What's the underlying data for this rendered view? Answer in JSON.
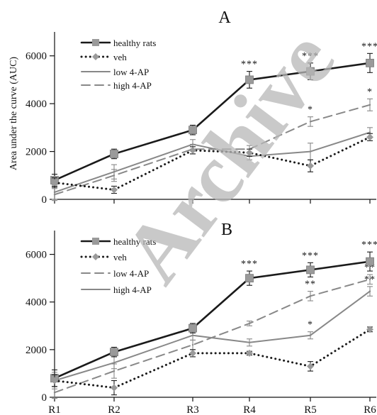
{
  "watermark": "Archive",
  "x_tick_labels": [
    "R1",
    "R2",
    "R3",
    "R4",
    "R5",
    "R6"
  ],
  "chart_data": [
    {
      "type": "line",
      "title": "A",
      "xlabel": "",
      "ylabel": "Area under the curve (AUC)",
      "categories": [
        "R1",
        "R2",
        "R3",
        "R4",
        "R5",
        "R6"
      ],
      "ylim": [
        0,
        7000
      ],
      "yticks": [
        0,
        2000,
        4000,
        6000
      ],
      "grid": false,
      "legend_position": "top-left",
      "series": [
        {
          "name": "healthy rats",
          "values": [
            800,
            1900,
            2900,
            5000,
            5350,
            5700
          ],
          "errors": [
            250,
            200,
            200,
            350,
            350,
            400
          ],
          "color": "#1a1a1a",
          "dash": "solid",
          "width": 2.6,
          "marker": "square",
          "significance": [
            "",
            "",
            "",
            "***",
            "***",
            "***"
          ]
        },
        {
          "name": "veh",
          "values": [
            700,
            400,
            2050,
            1950,
            1400,
            2600
          ],
          "errors": [
            200,
            150,
            150,
            150,
            250,
            150
          ],
          "color": "#1a1a1a",
          "dash": "dotted",
          "width": 3,
          "marker": "diamond",
          "significance": [
            "",
            "",
            "",
            "",
            "",
            ""
          ]
        },
        {
          "name": "low 4-AP",
          "values": [
            300,
            1150,
            2300,
            1800,
            2000,
            2800
          ],
          "errors": [
            300,
            300,
            200,
            150,
            350,
            200
          ],
          "color": "#888888",
          "dash": "solid",
          "width": 2,
          "marker": "none",
          "significance": [
            "",
            "",
            "",
            "",
            "",
            ""
          ]
        },
        {
          "name": "high 4-AP",
          "values": [
            200,
            1000,
            2100,
            2100,
            3250,
            3950
          ],
          "errors": [
            250,
            250,
            200,
            150,
            200,
            250
          ],
          "color": "#888888",
          "dash": "dashed",
          "width": 2,
          "marker": "none",
          "significance": [
            "",
            "",
            "",
            "",
            "*",
            "*"
          ]
        }
      ]
    },
    {
      "type": "line",
      "title": "B",
      "xlabel": "",
      "ylabel": "",
      "categories": [
        "R1",
        "R2",
        "R3",
        "R4",
        "R5",
        "R6"
      ],
      "ylim": [
        0,
        7000
      ],
      "yticks": [
        0,
        2000,
        4000,
        6000
      ],
      "grid": false,
      "legend_position": "top-left",
      "series": [
        {
          "name": "healthy rats",
          "values": [
            800,
            1900,
            2900,
            5000,
            5350,
            5700
          ],
          "errors": [
            350,
            200,
            200,
            300,
            300,
            400
          ],
          "color": "#1a1a1a",
          "dash": "solid",
          "width": 2.6,
          "marker": "square",
          "significance": [
            "",
            "",
            "",
            "***",
            "***",
            "***"
          ]
        },
        {
          "name": "veh",
          "values": [
            700,
            400,
            1850,
            1850,
            1300,
            2850
          ],
          "errors": [
            250,
            300,
            150,
            80,
            200,
            100
          ],
          "color": "#1a1a1a",
          "dash": "dotted",
          "width": 3,
          "marker": "diamond",
          "significance": [
            "",
            "",
            "",
            "",
            "",
            ""
          ]
        },
        {
          "name": "low 4-AP",
          "values": [
            200,
            1100,
            2200,
            3100,
            4250,
            4950
          ],
          "errors": [
            250,
            300,
            200,
            100,
            200,
            200
          ],
          "color": "#888888",
          "dash": "dashed",
          "width": 2,
          "marker": "none",
          "significance": [
            "",
            "",
            "",
            "",
            "**",
            "**"
          ]
        },
        {
          "name": "high 4-AP",
          "values": [
            700,
            1450,
            2600,
            2300,
            2600,
            4450
          ],
          "errors": [
            350,
            250,
            200,
            150,
            150,
            200
          ],
          "color": "#888888",
          "dash": "solid",
          "width": 2,
          "marker": "none",
          "significance": [
            "",
            "",
            "",
            "",
            "*",
            "**"
          ]
        }
      ]
    }
  ]
}
